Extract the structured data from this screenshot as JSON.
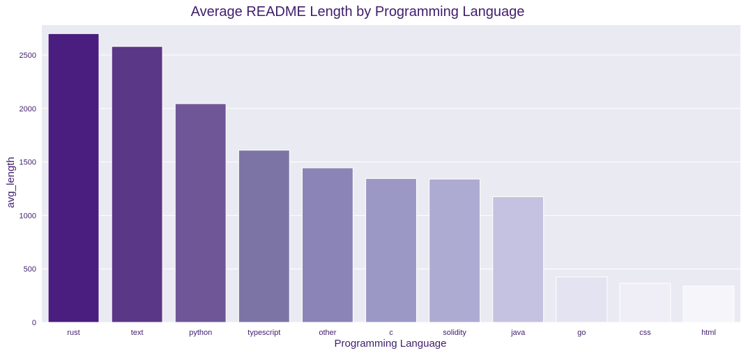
{
  "chart_data": {
    "type": "bar",
    "title": "Average README Length by Programming Language",
    "xlabel": "Programming Language",
    "ylabel": "avg_length",
    "categories": [
      "rust",
      "text",
      "python",
      "typescript",
      "other",
      "c",
      "solidity",
      "java",
      "go",
      "css",
      "html"
    ],
    "values": [
      2700,
      2580,
      2045,
      1610,
      1445,
      1345,
      1340,
      1175,
      425,
      365,
      340
    ],
    "ylim": [
      0,
      2780
    ],
    "yticks": [
      0,
      500,
      1000,
      1500,
      2000,
      2500
    ],
    "grid": true,
    "legend": "none",
    "colors": {
      "background": "#eaeaf2",
      "grid": "#ffffff",
      "text": "#3f1d6b",
      "bars": [
        "#4a1e7e",
        "#5b3787",
        "#6f5797",
        "#7d74a6",
        "#8a85b6",
        "#9b98c6",
        "#adabd2",
        "#c4c2e0",
        "#e4e3f1",
        "#efeef6",
        "#f6f5fa"
      ]
    }
  }
}
